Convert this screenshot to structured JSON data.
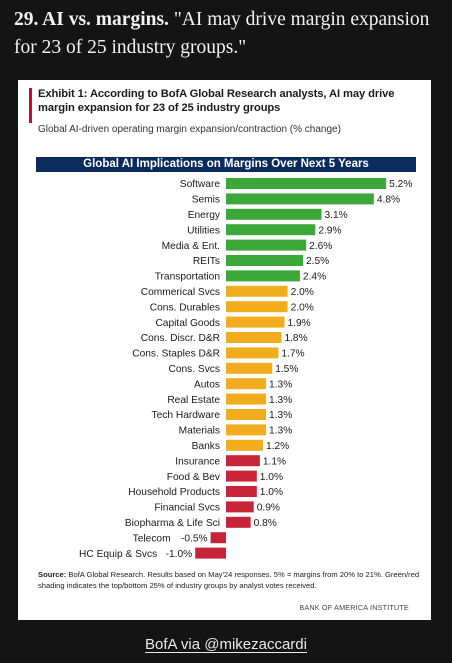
{
  "headline": {
    "number": "29. AI vs. margins.",
    "quote": "\"AI may drive margin expansion for 23 of 25 industry groups.\""
  },
  "card": {
    "exhibit_title": "Exhibit 1: According to BofA Global Research analysts, AI may drive margin expansion for 23 of 25 industry groups",
    "subtitle": "Global AI-driven operating margin expansion/contraction (% change)",
    "banner": "Global AI Implications on Margins Over Next 5 Years",
    "source_label": "Source:",
    "source_text": "BofA Global Research. Results based on May'24 responses. 5% = margins from 20% to 21%. Green/red shading indicates the top/bottom 25% of industry groups by analyst votes received.",
    "footer_brand": "BANK OF AMERICA INSTITUTE"
  },
  "credit": "BofA via @mikezaccardi",
  "colors": {
    "green": "#3ca83a",
    "orange": "#f2ad1f",
    "red": "#c82438",
    "banner": "#0b2b5c"
  },
  "chart_data": {
    "type": "bar",
    "orientation": "horizontal",
    "title": "Global AI Implications on Margins Over Next 5 Years",
    "categories": [
      "Software",
      "Semis",
      "Energy",
      "Utilities",
      "Media & Ent.",
      "REITs",
      "Transportation",
      "Commerical Svcs",
      "Cons. Durables",
      "Capital Goods",
      "Cons. Discr. D&R",
      "Cons. Staples D&R",
      "Cons. Svcs",
      "Autos",
      "Real Estate",
      "Tech Hardware",
      "Materials",
      "Banks",
      "Insurance",
      "Food & Bev",
      "Household Products",
      "Financial Svcs",
      "Biopharma & Life Sci",
      "Telecom",
      "HC Equip & Svcs"
    ],
    "values": [
      5.2,
      4.8,
      3.1,
      2.9,
      2.6,
      2.5,
      2.4,
      2.0,
      2.0,
      1.9,
      1.8,
      1.7,
      1.5,
      1.3,
      1.3,
      1.3,
      1.3,
      1.2,
      1.1,
      1.0,
      1.0,
      0.9,
      0.8,
      -0.5,
      -1.0
    ],
    "value_labels": [
      "5.2%",
      "4.8%",
      "3.1%",
      "2.9%",
      "2.6%",
      "2.5%",
      "2.4%",
      "2.0%",
      "2.0%",
      "1.9%",
      "1.8%",
      "1.7%",
      "1.5%",
      "1.3%",
      "1.3%",
      "1.3%",
      "1.3%",
      "1.2%",
      "1.1%",
      "1.0%",
      "1.0%",
      "0.9%",
      "0.8%",
      "-0.5%",
      "-1.0%"
    ],
    "groups": [
      "green",
      "green",
      "green",
      "green",
      "green",
      "green",
      "green",
      "orange",
      "orange",
      "orange",
      "orange",
      "orange",
      "orange",
      "orange",
      "orange",
      "orange",
      "orange",
      "orange",
      "red",
      "red",
      "red",
      "red",
      "red",
      "red",
      "red"
    ],
    "xlim": [
      -1.0,
      5.2
    ]
  }
}
